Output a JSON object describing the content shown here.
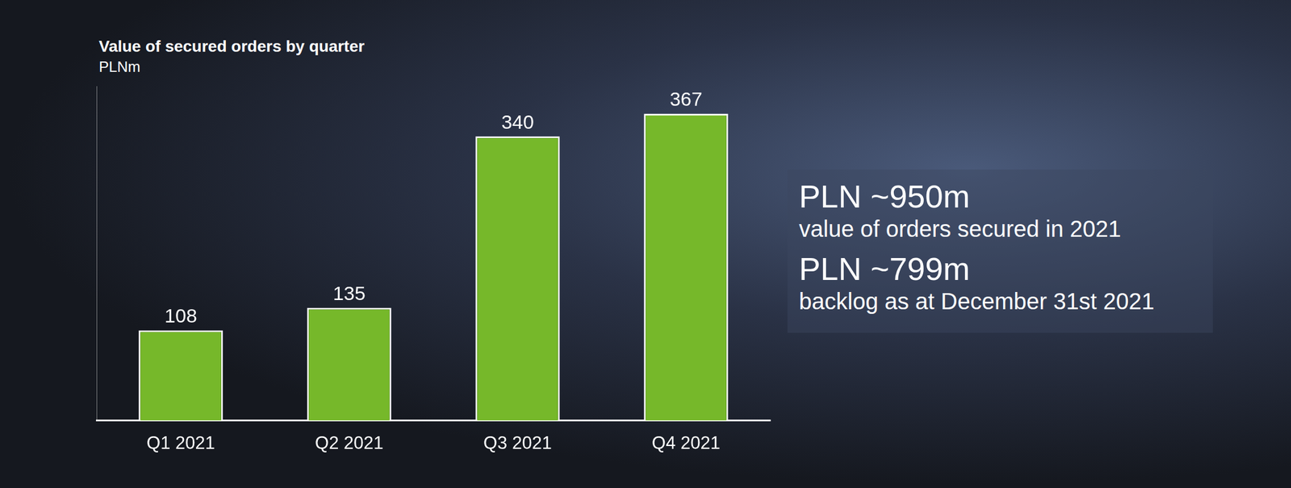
{
  "chart_data": {
    "type": "bar",
    "title": "Value of secured orders by quarter",
    "subtitle": "PLNm",
    "categories": [
      "Q1 2021",
      "Q2 2021",
      "Q3 2021",
      "Q4 2021"
    ],
    "values": [
      108,
      135,
      340,
      367
    ],
    "color": "#76b82a",
    "ylim": [
      0,
      400
    ],
    "yticks": [
      0,
      400
    ],
    "grid": false,
    "data_labels": true,
    "tick_labels": "x",
    "annotations": [
      {
        "headline": "PLN ~950m",
        "text": "value of orders secured in 2021"
      },
      {
        "headline": "PLN ~799m",
        "text": "backlog as at December 31st 2021"
      }
    ]
  }
}
